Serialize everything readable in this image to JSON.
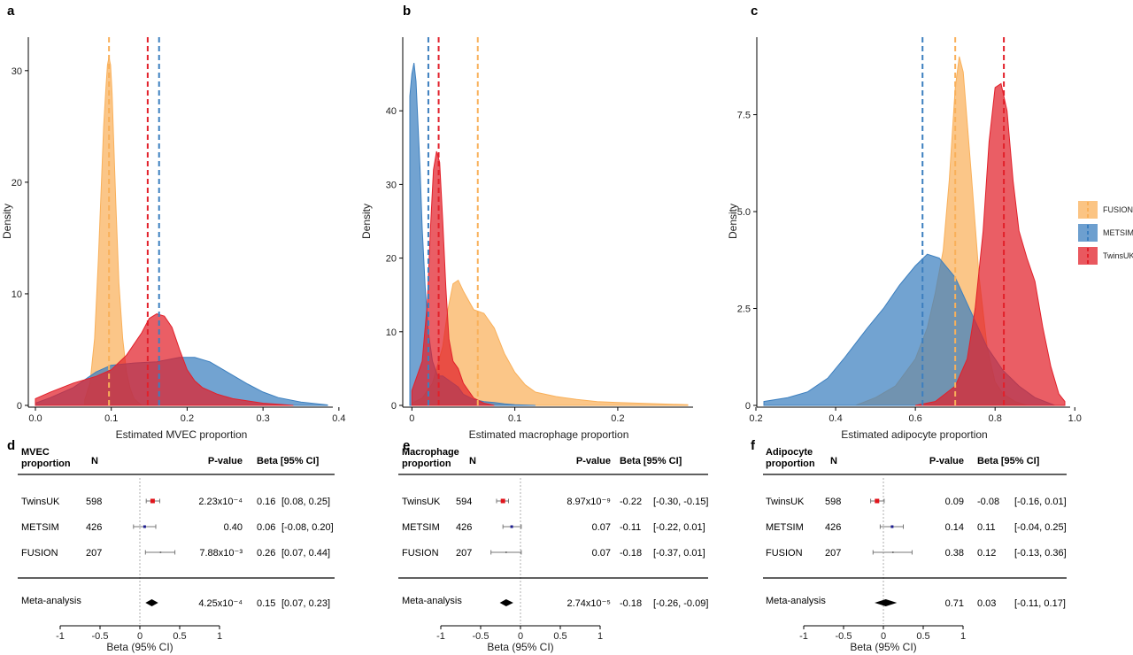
{
  "colors": {
    "FUSION": "#f9b05a",
    "METSIM": "#3c7fbf",
    "TwinsUK": "#e2202a"
  },
  "legend": {
    "position": "right",
    "entries": [
      "FUSION",
      "METSIM",
      "TwinsUK"
    ]
  },
  "chart_data": [
    {
      "panel": "a",
      "type": "area",
      "xlabel": "Estimated MVEC proportion",
      "ylabel": "Density",
      "xlim": [
        0,
        0.385
      ],
      "ylim": [
        0,
        33
      ],
      "xticks": [
        0.0,
        0.1,
        0.2,
        0.3,
        0.4
      ],
      "xtick_labels": [
        "0.0",
        "0.1",
        "0.2",
        "0.3",
        "0.4"
      ],
      "yticks": [
        0,
        10,
        20,
        30
      ],
      "ytick_labels": [
        "0",
        "10",
        "20",
        "30"
      ],
      "series": [
        {
          "name": "FUSION",
          "mean": 0.097,
          "x": [
            0.065,
            0.072,
            0.078,
            0.083,
            0.087,
            0.09,
            0.093,
            0.095,
            0.097,
            0.099,
            0.101,
            0.103,
            0.106,
            0.11,
            0.115,
            0.12,
            0.125,
            0.13,
            0.14
          ],
          "y": [
            0.5,
            2,
            6,
            13,
            20,
            25,
            28.5,
            30.5,
            31.2,
            30.5,
            28,
            24,
            18,
            11,
            6,
            3,
            1.5,
            0.6,
            0
          ]
        },
        {
          "name": "METSIM",
          "mean": 0.163,
          "x": [
            0.0,
            0.02,
            0.05,
            0.08,
            0.1,
            0.13,
            0.16,
            0.19,
            0.21,
            0.23,
            0.25,
            0.28,
            0.3,
            0.32,
            0.35,
            0.385
          ],
          "y": [
            0.2,
            0.7,
            1.6,
            3.0,
            3.6,
            3.8,
            3.9,
            4.3,
            4.3,
            3.9,
            3.1,
            1.9,
            1.2,
            0.7,
            0.3,
            0.05
          ]
        },
        {
          "name": "TwinsUK",
          "mean": 0.148,
          "x": [
            0.0,
            0.02,
            0.05,
            0.08,
            0.1,
            0.12,
            0.14,
            0.15,
            0.16,
            0.17,
            0.18,
            0.19,
            0.2,
            0.21,
            0.22,
            0.24,
            0.26,
            0.3,
            0.34
          ],
          "y": [
            0.6,
            1.2,
            2.0,
            2.6,
            3.2,
            4.5,
            6.5,
            7.8,
            8.2,
            8.0,
            7.0,
            5.0,
            3.2,
            2.2,
            1.6,
            1.0,
            0.6,
            0.2,
            0
          ]
        }
      ]
    },
    {
      "panel": "b",
      "type": "area",
      "xlabel": "Estimated macrophage proportion",
      "ylabel": "Density",
      "xlim": [
        -0.002,
        0.268
      ],
      "ylim": [
        0,
        50
      ],
      "xticks": [
        0.0,
        0.1,
        0.2
      ],
      "xtick_labels": [
        "0",
        "0.1",
        "0.2"
      ],
      "yticks": [
        0,
        10,
        20,
        30,
        40
      ],
      "ytick_labels": [
        "0",
        "10",
        "20",
        "30",
        "40"
      ],
      "series": [
        {
          "name": "FUSION",
          "mean": 0.064,
          "x": [
            0.0,
            0.01,
            0.02,
            0.03,
            0.035,
            0.04,
            0.045,
            0.05,
            0.06,
            0.07,
            0.08,
            0.09,
            0.1,
            0.11,
            0.12,
            0.14,
            0.16,
            0.18,
            0.2,
            0.22,
            0.24,
            0.268
          ],
          "y": [
            0.3,
            1,
            3,
            8,
            13,
            16.5,
            17,
            15.5,
            13,
            12.5,
            10.5,
            7,
            4.5,
            2.8,
            1.8,
            1.2,
            0.8,
            0.5,
            0.4,
            0.3,
            0.2,
            0.1
          ]
        },
        {
          "name": "METSIM",
          "mean": 0.016,
          "x": [
            -0.002,
            0.0,
            0.002,
            0.004,
            0.006,
            0.008,
            0.01,
            0.013,
            0.016,
            0.02,
            0.025,
            0.03,
            0.035,
            0.04,
            0.045,
            0.05,
            0.06,
            0.07,
            0.08,
            0.09,
            0.1,
            0.12
          ],
          "y": [
            42,
            45,
            46.5,
            44,
            38,
            32,
            24,
            16,
            10,
            6,
            4,
            4,
            3.5,
            3,
            2.5,
            1.5,
            0.8,
            0.5,
            0.4,
            0.2,
            0.1,
            0
          ]
        },
        {
          "name": "TwinsUK",
          "mean": 0.026,
          "x": [
            0.0,
            0.01,
            0.015,
            0.018,
            0.021,
            0.024,
            0.027,
            0.03,
            0.033,
            0.036,
            0.04,
            0.045,
            0.05,
            0.055,
            0.06,
            0.07,
            0.08
          ],
          "y": [
            2,
            6,
            14,
            24,
            32,
            34.5,
            33,
            25,
            16,
            9,
            6,
            5,
            3,
            2,
            1,
            0.3,
            0
          ]
        }
      ]
    },
    {
      "panel": "c",
      "type": "area",
      "xlabel": "Estimated adipocyte proportion",
      "ylabel": "Density",
      "xlim": [
        0.22,
        0.975
      ],
      "ylim": [
        0,
        9.5
      ],
      "xticks": [
        0.2,
        0.4,
        0.6,
        0.8,
        1.0
      ],
      "xtick_labels": [
        "0.2",
        "0.4",
        "0.6",
        "0.8",
        "1.0"
      ],
      "yticks": [
        0,
        2.5,
        5.0,
        7.5
      ],
      "ytick_labels": [
        "0",
        "2.5",
        "5.0",
        "7.5"
      ],
      "series": [
        {
          "name": "FUSION",
          "mean": 0.7,
          "x": [
            0.45,
            0.5,
            0.55,
            0.6,
            0.63,
            0.65,
            0.67,
            0.685,
            0.7,
            0.71,
            0.72,
            0.74,
            0.76,
            0.78,
            0.8,
            0.82,
            0.85,
            0.88
          ],
          "y": [
            0,
            0.2,
            0.5,
            1.2,
            2.0,
            2.9,
            4.0,
            5.8,
            8.2,
            9.0,
            8.6,
            6.0,
            3.3,
            1.5,
            0.6,
            0.3,
            0.1,
            0
          ]
        },
        {
          "name": "METSIM",
          "mean": 0.618,
          "x": [
            0.22,
            0.28,
            0.33,
            0.38,
            0.42,
            0.45,
            0.48,
            0.52,
            0.56,
            0.6,
            0.63,
            0.66,
            0.7,
            0.74,
            0.78,
            0.82,
            0.86,
            0.9,
            0.95
          ],
          "y": [
            0.1,
            0.2,
            0.35,
            0.7,
            1.2,
            1.6,
            2.0,
            2.5,
            3.1,
            3.6,
            3.9,
            3.8,
            3.3,
            2.4,
            1.5,
            0.9,
            0.5,
            0.2,
            0
          ]
        },
        {
          "name": "TwinsUK",
          "mean": 0.822,
          "x": [
            0.6,
            0.65,
            0.7,
            0.73,
            0.75,
            0.77,
            0.785,
            0.8,
            0.815,
            0.83,
            0.845,
            0.86,
            0.88,
            0.9,
            0.92,
            0.94,
            0.96,
            0.975
          ],
          "y": [
            0,
            0.1,
            0.5,
            1.2,
            2.5,
            4.5,
            6.8,
            8.2,
            8.3,
            7.6,
            5.8,
            4.5,
            3.8,
            3.2,
            2.0,
            1.0,
            0.3,
            0.1
          ]
        }
      ]
    },
    {
      "panel": "d",
      "type": "table",
      "head": {
        "col1": "MVEC\nproportion",
        "n": "N",
        "p": "P-value",
        "beta": "Beta [95% CI]"
      },
      "rows": [
        {
          "study": "TwinsUK",
          "n": "598",
          "p": "2.23x10⁻⁴",
          "beta": "0.16",
          "ci": "[0.08, 0.25]",
          "est": 0.16,
          "lo": 0.08,
          "hi": 0.25,
          "marker": "TwinsUK"
        },
        {
          "study": "METSIM",
          "n": "426",
          "p": "0.40",
          "beta": "0.06",
          "ci": "[-0.08, 0.20]",
          "est": 0.06,
          "lo": -0.08,
          "hi": 0.2,
          "marker": "METSIM"
        },
        {
          "study": "FUSION",
          "n": "207",
          "p": "7.88x10⁻³",
          "beta": "0.26",
          "ci": "[0.07, 0.44]",
          "est": 0.26,
          "lo": 0.07,
          "hi": 0.44,
          "marker": "FUSION"
        }
      ],
      "meta": {
        "study": "Meta-analysis",
        "p": "4.25x10⁻⁴",
        "beta": "0.15",
        "ci": "[0.07, 0.23]",
        "est": 0.15,
        "lo": 0.07,
        "hi": 0.23
      },
      "xlim": [
        -1,
        1
      ],
      "xticks": [
        -1,
        -0.5,
        0,
        0.5,
        1
      ],
      "xtick_labels": [
        "-1",
        "-0.5",
        "0",
        "0.5",
        "1"
      ],
      "xlabel": "Beta (95% CI)"
    },
    {
      "panel": "e",
      "type": "table",
      "head": {
        "col1": "Macrophage\nproportion",
        "n": "N",
        "p": "P-value",
        "beta": "Beta   [95% CI]"
      },
      "rows": [
        {
          "study": "TwinsUK",
          "n": "594",
          "p": "8.97x10⁻⁹",
          "beta": "-0.22",
          "ci": "[-0.30, -0.15]",
          "est": -0.22,
          "lo": -0.3,
          "hi": -0.15,
          "marker": "TwinsUK"
        },
        {
          "study": "METSIM",
          "n": "426",
          "p": "0.07",
          "beta": "-0.11",
          "ci": "[-0.22, 0.01]",
          "est": -0.11,
          "lo": -0.22,
          "hi": 0.01,
          "marker": "METSIM"
        },
        {
          "study": "FUSION",
          "n": "207",
          "p": "0.07",
          "beta": "-0.18",
          "ci": "[-0.37, 0.01]",
          "est": -0.18,
          "lo": -0.37,
          "hi": 0.01,
          "marker": "FUSION"
        }
      ],
      "meta": {
        "study": "Meta-analysis",
        "p": "2.74x10⁻⁵",
        "beta": "-0.18",
        "ci": "[-0.26, -0.09]",
        "est": -0.18,
        "lo": -0.26,
        "hi": -0.09
      },
      "xlim": [
        -1,
        1
      ],
      "xticks": [
        -1,
        -0.5,
        0,
        0.5,
        1
      ],
      "xtick_labels": [
        "-1",
        "-0.5",
        "0",
        "0.5",
        "1"
      ],
      "xlabel": "Beta (95% CI)"
    },
    {
      "panel": "f",
      "type": "table",
      "head": {
        "col1": "Adipocyte\nproportion",
        "n": "N",
        "p": "P-value",
        "beta": "Beta      [95% CI]"
      },
      "rows": [
        {
          "study": "TwinsUK",
          "n": "598",
          "p": "0.09",
          "beta": "-0.08",
          "ci": "[-0.16, 0.01]",
          "est": -0.08,
          "lo": -0.16,
          "hi": 0.01,
          "marker": "TwinsUK"
        },
        {
          "study": "METSIM",
          "n": "426",
          "p": "0.14",
          "beta": "0.11",
          "ci": "[-0.04, 0.25]",
          "est": 0.11,
          "lo": -0.04,
          "hi": 0.25,
          "marker": "METSIM"
        },
        {
          "study": "FUSION",
          "n": "207",
          "p": "0.38",
          "beta": "0.12",
          "ci": "[-0.13, 0.36]",
          "est": 0.12,
          "lo": -0.13,
          "hi": 0.36,
          "marker": "FUSION"
        }
      ],
      "meta": {
        "study": "Meta-analysis",
        "p": "0.71",
        "beta": "0.03",
        "ci": "[-0.11, 0.17]",
        "est": 0.03,
        "lo": -0.11,
        "hi": 0.17
      },
      "xlim": [
        -1,
        1
      ],
      "xticks": [
        -1,
        -0.5,
        0,
        0.5,
        1
      ],
      "xtick_labels": [
        "-1",
        "-0.5",
        "0",
        "0.5",
        "1"
      ],
      "xlabel": "Beta (95% CI)"
    }
  ]
}
